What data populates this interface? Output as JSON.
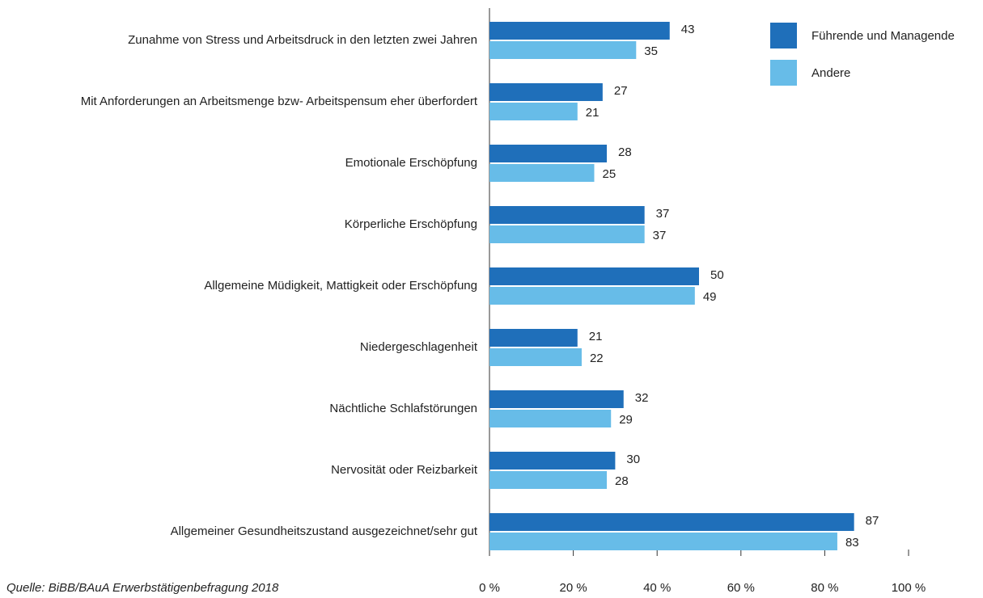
{
  "chart_data": {
    "type": "bar",
    "orientation": "horizontal",
    "categories": [
      "Zunahme von Stress und Arbeitsdruck in den letzten zwei Jahren",
      "Mit Anforderungen an Arbeitsmenge bzw- Arbeitspensum eher überfordert",
      "Emotionale Erschöpfung",
      "Körperliche Erschöpfung",
      "Allgemeine Müdigkeit, Mattigkeit oder Erschöpfung",
      "Niedergeschlagenheit",
      "Nächtliche Schlafstörungen",
      "Nervosität oder Reizbarkeit",
      "Allgemeiner Gesundheitszustand ausgezeichnet/sehr gut"
    ],
    "series": [
      {
        "name": "Führende und Managende",
        "color": "#1f6fba",
        "values": [
          43,
          27,
          28,
          37,
          50,
          21,
          32,
          30,
          87
        ]
      },
      {
        "name": "Andere",
        "color": "#67bce8",
        "values": [
          35,
          21,
          25,
          37,
          49,
          22,
          29,
          28,
          83
        ]
      }
    ],
    "xlim": [
      0,
      100
    ],
    "xticks": [
      {
        "value": 0,
        "label": "0 %"
      },
      {
        "value": 20,
        "label": "20 %"
      },
      {
        "value": 40,
        "label": "40 %"
      },
      {
        "value": 60,
        "label": "60 %"
      },
      {
        "value": 80,
        "label": "80 %"
      },
      {
        "value": 100,
        "label": "100 %"
      }
    ],
    "legend": "top-right",
    "source": "Quelle: BiBB/BAuA Erwerbstätigenbefragung 2018"
  }
}
